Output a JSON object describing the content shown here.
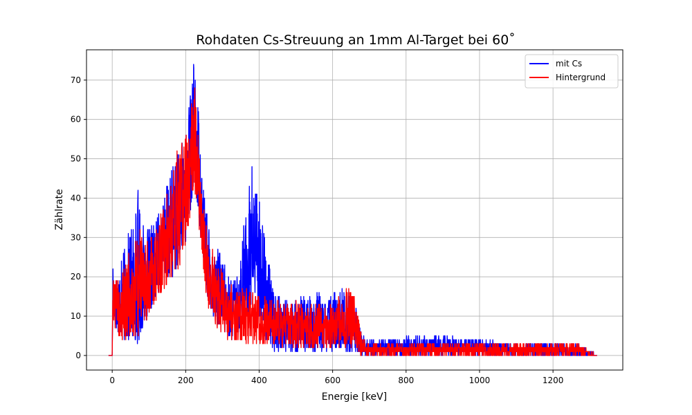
{
  "chart_data": {
    "type": "line",
    "title": "Rohdaten Cs-Streuung an 1mm Al-Target bei 60˚",
    "xlabel": "Energie [keV]",
    "ylabel": "Zählrate",
    "xlim": [
      -70,
      1390
    ],
    "ylim": [
      -3.7,
      77.7
    ],
    "xticks": [
      0,
      200,
      400,
      600,
      800,
      1000,
      1200
    ],
    "yticks": [
      0,
      10,
      20,
      30,
      40,
      50,
      60,
      70
    ],
    "grid": true,
    "legend_position": "top-right",
    "colors": {
      "series_1": "#0000ff",
      "series_2": "#ff0000"
    },
    "series": [
      {
        "name": "mit Cs",
        "color": "#0000ff",
        "x": [
          -10,
          0,
          2,
          5,
          20,
          40,
          60,
          70,
          80,
          100,
          120,
          140,
          160,
          180,
          200,
          210,
          220,
          230,
          240,
          250,
          260,
          280,
          300,
          320,
          340,
          360,
          380,
          390,
          400,
          420,
          440,
          460,
          480,
          500,
          520,
          540,
          560,
          580,
          600,
          620,
          640,
          660,
          680,
          700,
          800,
          900,
          1000,
          1100,
          1200,
          1270,
          1320
        ],
        "envelope_low": [
          0,
          0,
          14,
          8,
          5,
          3,
          3,
          3,
          6,
          10,
          15,
          18,
          20,
          22,
          28,
          34,
          42,
          40,
          30,
          22,
          14,
          8,
          6,
          4,
          5,
          8,
          12,
          14,
          10,
          4,
          1,
          1,
          1,
          1,
          1,
          1,
          1,
          1,
          1,
          1,
          1,
          1,
          0,
          0,
          0,
          0,
          0,
          0,
          0,
          0,
          0
        ],
        "envelope_high": [
          0,
          0,
          24,
          20,
          22,
          30,
          35,
          44,
          33,
          32,
          35,
          40,
          48,
          52,
          58,
          65,
          74,
          72,
          55,
          42,
          35,
          28,
          25,
          20,
          20,
          35,
          50,
          44,
          42,
          28,
          16,
          15,
          14,
          15,
          15,
          15,
          16,
          14,
          16,
          17,
          17,
          14,
          5,
          4,
          5,
          5,
          4,
          3,
          3,
          3,
          0
        ]
      },
      {
        "name": "Hintergrund",
        "color": "#ff0000",
        "x": [
          -10,
          0,
          2,
          5,
          20,
          40,
          60,
          70,
          80,
          100,
          120,
          140,
          160,
          180,
          200,
          210,
          220,
          230,
          240,
          250,
          260,
          280,
          300,
          320,
          340,
          360,
          380,
          390,
          400,
          420,
          440,
          460,
          480,
          500,
          520,
          540,
          560,
          580,
          600,
          620,
          640,
          660,
          680,
          700,
          800,
          900,
          1000,
          1100,
          1200,
          1270,
          1320
        ],
        "envelope_low": [
          0,
          0,
          12,
          7,
          4,
          3,
          3,
          4,
          6,
          10,
          14,
          17,
          19,
          22,
          26,
          32,
          40,
          38,
          28,
          20,
          12,
          8,
          5,
          4,
          3,
          3,
          3,
          3,
          3,
          3,
          2,
          2,
          2,
          2,
          2,
          2,
          2,
          2,
          2,
          2,
          2,
          2,
          0,
          0,
          0,
          0,
          0,
          0,
          0,
          0,
          0
        ],
        "envelope_high": [
          0,
          0,
          20,
          18,
          20,
          26,
          28,
          34,
          30,
          30,
          33,
          38,
          46,
          54,
          56,
          62,
          71,
          68,
          50,
          38,
          32,
          26,
          22,
          18,
          16,
          17,
          16,
          16,
          16,
          15,
          14,
          14,
          13,
          14,
          13,
          13,
          13,
          13,
          14,
          15,
          18,
          15,
          5,
          3,
          3,
          3,
          3,
          3,
          3,
          3,
          0
        ]
      }
    ]
  }
}
